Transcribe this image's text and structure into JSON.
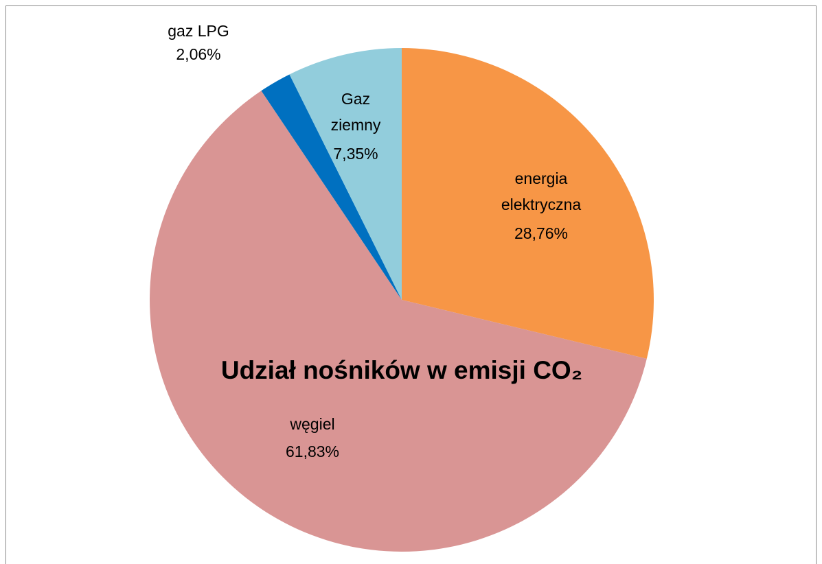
{
  "chart_data": {
    "type": "pie",
    "title": "Udział nośników w emisji CO₂",
    "categories": [
      "energia elektryczna",
      "węgiel",
      "gaz LPG",
      "Gaz ziemny"
    ],
    "values": [
      28.76,
      61.83,
      2.06,
      7.35
    ],
    "value_labels": [
      "28,76%",
      "61,83%",
      "2,06%",
      "7,35%"
    ],
    "colors": [
      "#F79646",
      "#D99594",
      "#0070C0",
      "#92CDDC"
    ]
  }
}
